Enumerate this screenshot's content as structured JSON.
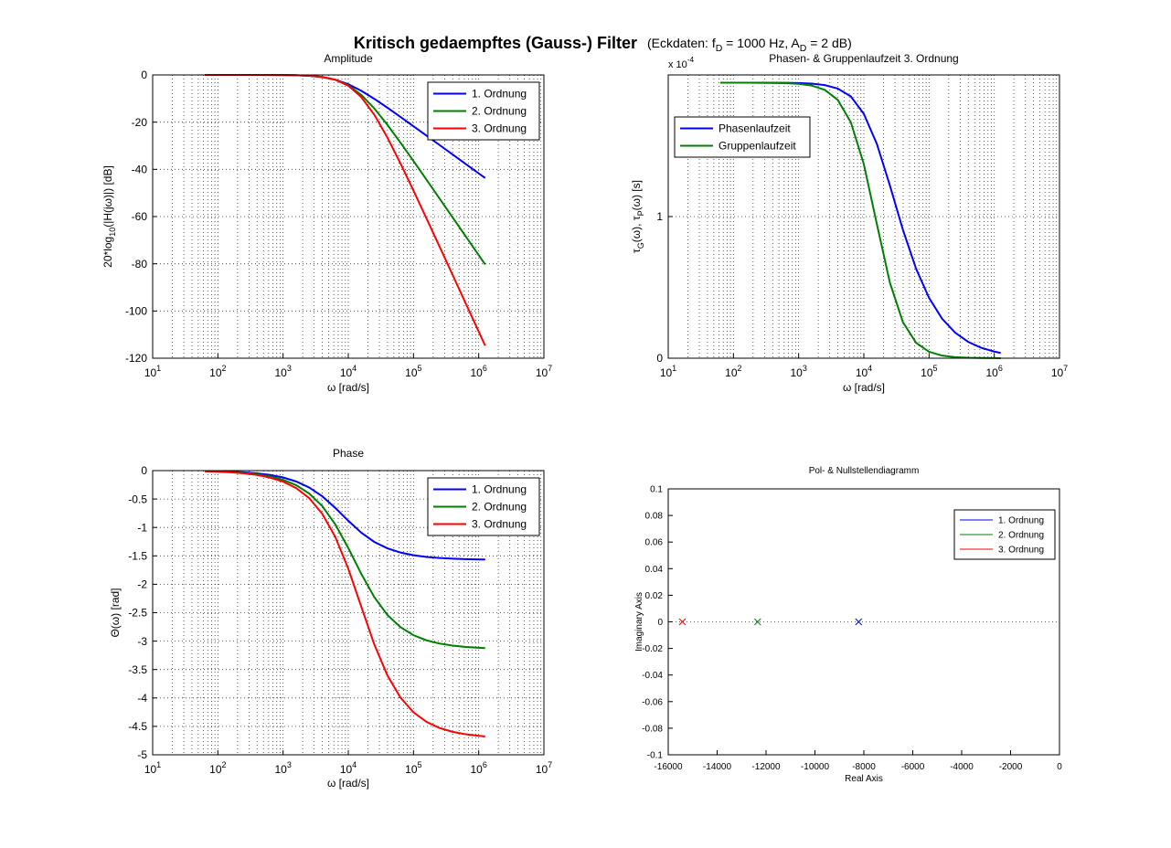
{
  "figure": {
    "title": "Kritisch gedaempftes (Gauss-) Filter",
    "subtitle": [
      "(Eckdaten: f",
      "D",
      " = 1000 Hz, A",
      "D",
      " = 2 dB)"
    ]
  },
  "chart_data": [
    {
      "type": "line",
      "title": "Amplitude",
      "xlabel": "ω [rad/s]",
      "ylabel": [
        "20*log",
        "10",
        "(|H(jω)|) [dB]"
      ],
      "xscale": "log",
      "grid": true,
      "minor_grid": true,
      "legend": "northeast",
      "xlim": [
        10,
        10000000
      ],
      "xticks": [
        {
          "value": 10,
          "label": [
            "10",
            "1"
          ]
        },
        {
          "value": 100,
          "label": [
            "10",
            "2"
          ]
        },
        {
          "value": 1000,
          "label": [
            "10",
            "3"
          ]
        },
        {
          "value": 10000,
          "label": [
            "10",
            "4"
          ]
        },
        {
          "value": 100000,
          "label": [
            "10",
            "5"
          ]
        },
        {
          "value": 1000000,
          "label": [
            "10",
            "6"
          ]
        },
        {
          "value": 10000000,
          "label": [
            "10",
            "7"
          ]
        }
      ],
      "ylim": [
        -120,
        0
      ],
      "yticks": [
        -120,
        -100,
        -80,
        -60,
        -40,
        -20,
        0
      ],
      "x": [
        63,
        100,
        158,
        251,
        398,
        631,
        1000,
        1585,
        2512,
        3981,
        6310,
        10000,
        15849,
        25119,
        39811,
        63096,
        100000,
        158489,
        251189,
        398107,
        630957,
        1000000,
        1256637
      ],
      "series": [
        {
          "name": "1. Ordnung",
          "color": "#0000ff",
          "values": [
            0,
            0,
            -0.002,
            -0.004,
            -0.01,
            -0.026,
            -0.064,
            -0.159,
            -0.388,
            -0.917,
            -2.01,
            -3.95,
            -6.74,
            -10.15,
            -13.89,
            -17.78,
            -21.74,
            -25.72,
            -29.71,
            -33.71,
            -37.71,
            -41.71,
            -43.69
          ]
        },
        {
          "name": "2. Ordnung",
          "color": "#008000",
          "values": [
            0,
            -0.001,
            -0.001,
            -0.004,
            -0.009,
            -0.023,
            -0.057,
            -0.142,
            -0.352,
            -0.859,
            -2.02,
            -4.38,
            -8.46,
            -14.22,
            -21.14,
            -28.67,
            -36.47,
            -44.39,
            -52.36,
            -60.35,
            -68.34,
            -76.34,
            -80.31
          ]
        },
        {
          "name": "3. Ordnung",
          "color": "#ff0000",
          "values": [
            0,
            -0.001,
            -0.001,
            -0.004,
            -0.009,
            -0.022,
            -0.055,
            -0.137,
            -0.341,
            -0.84,
            -2.02,
            -4.57,
            -9.39,
            -16.88,
            -26.53,
            -37.47,
            -49.01,
            -60.83,
            -72.76,
            -84.73,
            -96.72,
            -108.71,
            -114.67
          ]
        }
      ]
    },
    {
      "type": "line",
      "title": "Phasen- & Gruppenlaufzeit 3. Ordnung",
      "xlabel": "ω [rad/s]",
      "ylabel": [
        "τ",
        "G",
        "(ω), τ",
        "P",
        "(ω) [s]"
      ],
      "y_multiplier": [
        "x 10",
        "-4"
      ],
      "xscale": "log",
      "grid": true,
      "minor_grid": true,
      "legend": "northwest",
      "xlim": [
        10,
        10000000
      ],
      "xticks": [
        {
          "value": 10,
          "label": [
            "10",
            "1"
          ]
        },
        {
          "value": 100,
          "label": [
            "10",
            "2"
          ]
        },
        {
          "value": 1000,
          "label": [
            "10",
            "3"
          ]
        },
        {
          "value": 10000,
          "label": [
            "10",
            "4"
          ]
        },
        {
          "value": 100000,
          "label": [
            "10",
            "5"
          ]
        },
        {
          "value": 1000000,
          "label": [
            "10",
            "6"
          ]
        },
        {
          "value": 10000000,
          "label": [
            "10",
            "7"
          ]
        }
      ],
      "ylim": [
        0,
        2
      ],
      "yticks": [
        0,
        1
      ],
      "x": [
        63,
        100,
        158,
        251,
        398,
        631,
        1000,
        1585,
        2512,
        3981,
        6310,
        10000,
        15849,
        25119,
        39811,
        63096,
        100000,
        158489,
        251189,
        398107,
        630957,
        1000000,
        1256637
      ],
      "series": [
        {
          "name": "Phasenlaufzeit",
          "color": "#0000ff",
          "values": [
            1.9451,
            1.9451,
            1.945,
            1.9449,
            1.9447,
            1.944,
            1.9424,
            1.9383,
            1.9284,
            1.9037,
            1.8481,
            1.7249,
            1.5124,
            1.2185,
            0.9054,
            0.6329,
            0.4253,
            0.279,
            0.1803,
            0.1155,
            0.0735,
            0.0467,
            0.0372
          ]
        },
        {
          "name": "Gruppenlaufzeit",
          "color": "#008000",
          "values": [
            1.9451,
            1.945,
            1.9449,
            1.9446,
            1.9438,
            1.9419,
            1.937,
            1.9248,
            1.8948,
            1.8237,
            1.6662,
            1.3694,
            0.9461,
            0.5325,
            0.2539,
            0.1096,
            0.0452,
            0.0182,
            0.0073,
            0.0029,
            0.0012,
            0.0005,
            0.0003
          ]
        }
      ]
    },
    {
      "type": "line",
      "title": "Phase",
      "xlabel": "ω [rad/s]",
      "ylabel": "Θ(ω) [rad]",
      "xscale": "log",
      "grid": true,
      "minor_grid": true,
      "legend": "northeast",
      "xlim": [
        10,
        10000000
      ],
      "xticks": [
        {
          "value": 10,
          "label": [
            "10",
            "1"
          ]
        },
        {
          "value": 100,
          "label": [
            "10",
            "2"
          ]
        },
        {
          "value": 1000,
          "label": [
            "10",
            "3"
          ]
        },
        {
          "value": 10000,
          "label": [
            "10",
            "4"
          ]
        },
        {
          "value": 100000,
          "label": [
            "10",
            "5"
          ]
        },
        {
          "value": 1000000,
          "label": [
            "10",
            "6"
          ]
        },
        {
          "value": 10000000,
          "label": [
            "10",
            "7"
          ]
        }
      ],
      "ylim": [
        -5,
        0
      ],
      "yticks": [
        -5,
        -4.5,
        -4,
        -3.5,
        -3,
        -2.5,
        -2,
        -1.5,
        -1,
        -0.5,
        0
      ],
      "x": [
        63,
        100,
        158,
        251,
        398,
        631,
        1000,
        1585,
        2512,
        3981,
        6310,
        10000,
        15849,
        25119,
        39811,
        63096,
        100000,
        158489,
        251189,
        398107,
        630957,
        1000000,
        1256637
      ],
      "series": [
        {
          "name": "1. Ordnung",
          "color": "#0000ff",
          "values": [
            -0.0077,
            -0.0122,
            -0.0193,
            -0.0306,
            -0.0485,
            -0.0767,
            -0.1211,
            -0.1907,
            -0.2968,
            -0.4516,
            -0.655,
            -0.883,
            -1.0927,
            -1.2554,
            -1.3673,
            -1.4413,
            -1.4888,
            -1.519,
            -1.5381,
            -1.5502,
            -1.5578,
            -1.5626,
            -1.5643
          ]
        },
        {
          "name": "2. Ordnung",
          "color": "#008000",
          "values": [
            -0.0102,
            -0.0162,
            -0.0256,
            -0.0406,
            -0.0644,
            -0.1021,
            -0.1616,
            -0.2554,
            -0.4016,
            -0.6238,
            -0.9448,
            -1.362,
            -1.8178,
            -2.228,
            -2.54,
            -2.7552,
            -2.8958,
            -2.9862,
            -3.0434,
            -3.0796,
            -3.1025,
            -3.1169,
            -3.122
          ]
        },
        {
          "name": "3. Ordnung",
          "color": "#ff0000",
          "values": [
            -0.0123,
            -0.0194,
            -0.0307,
            -0.0489,
            -0.0774,
            -0.1226,
            -0.1941,
            -0.3073,
            -0.4845,
            -0.7579,
            -1.1661,
            -1.7249,
            -2.397,
            -3.0609,
            -3.6042,
            -3.9933,
            -4.2534,
            -4.4214,
            -4.5285,
            -4.5963,
            -4.6391,
            -4.6662,
            -4.6756
          ]
        }
      ]
    },
    {
      "type": "scatter",
      "title": "Pol- & Nullstellendiagramm",
      "xlabel": "Real Axis",
      "ylabel": "Imaginary Axis",
      "marker": "x",
      "zero_line": true,
      "legend": "northeast",
      "xlim": [
        -16000,
        0
      ],
      "xticks": [
        -16000,
        -14000,
        -12000,
        -10000,
        -8000,
        -6000,
        -4000,
        -2000,
        0
      ],
      "ylim": [
        -0.1,
        0.1
      ],
      "yticks": [
        -0.1,
        -0.08,
        -0.06,
        -0.04,
        -0.02,
        0,
        0.02,
        0.04,
        0.06,
        0.08,
        0.1
      ],
      "series": [
        {
          "name": "1. Ordnung",
          "color": "#0000ff",
          "x": [
            -8214
          ],
          "values": [
            0
          ]
        },
        {
          "name": "2. Ordnung",
          "color": "#008000",
          "x": [
            -12345
          ],
          "values": [
            0
          ]
        },
        {
          "name": "3. Ordnung",
          "color": "#ff0000",
          "x": [
            -15423
          ],
          "values": [
            0
          ]
        }
      ]
    }
  ]
}
